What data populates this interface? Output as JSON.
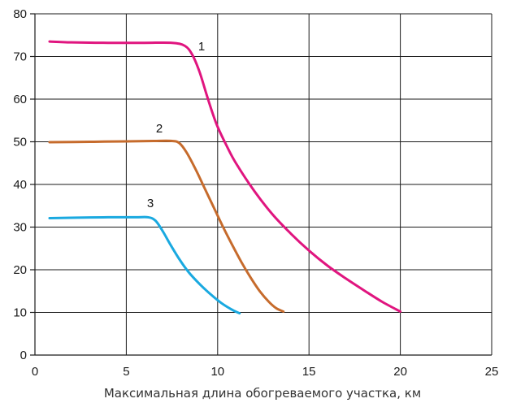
{
  "chart_data": {
    "type": "line",
    "title": "",
    "xlabel": "Максимальная длина обогреваемого участка, км",
    "ylabel": "",
    "xlim": [
      0,
      25
    ],
    "ylim": [
      0,
      80
    ],
    "xticks": [
      0,
      5,
      10,
      15,
      20,
      25
    ],
    "yticks": [
      0,
      10,
      20,
      30,
      40,
      50,
      60,
      70,
      80
    ],
    "grid": true,
    "legend": "none",
    "series": [
      {
        "label": "1",
        "color": "#e0157f",
        "x": [
          0.8,
          2,
          4,
          6,
          7.5,
          8.2,
          8.6,
          9.0,
          9.4,
          9.7,
          10.0,
          10.5,
          11,
          12,
          13,
          14,
          15,
          16,
          17,
          18,
          19,
          20
        ],
        "y": [
          73.5,
          73.3,
          73.2,
          73.2,
          73.2,
          72.5,
          70.5,
          66.5,
          61,
          57,
          53.5,
          49,
          45,
          38.5,
          33,
          28.5,
          24.5,
          21,
          18,
          15.2,
          12.5,
          10.2
        ]
      },
      {
        "label": "2",
        "color": "#c66b2c",
        "x": [
          0.8,
          3,
          5,
          6.5,
          7.5,
          7.9,
          8.3,
          8.8,
          9.3,
          9.8,
          10.3,
          10.8,
          11.3,
          11.8,
          12.3,
          12.8,
          13.2,
          13.6
        ],
        "y": [
          49.9,
          50,
          50.1,
          50.2,
          50.2,
          49.7,
          47.5,
          43.5,
          39,
          34.5,
          30,
          25.8,
          21.8,
          18.2,
          15,
          12.5,
          11,
          10.2
        ]
      },
      {
        "label": "3",
        "color": "#1aa9e0",
        "x": [
          0.8,
          2,
          4,
          5.5,
          6.2,
          6.6,
          7.0,
          7.4,
          7.9,
          8.4,
          9.0,
          9.6,
          10.2,
          10.8,
          11.2
        ],
        "y": [
          32.1,
          32.2,
          32.3,
          32.3,
          32.3,
          31.5,
          29,
          26,
          22.5,
          19.5,
          16.7,
          14.3,
          12.2,
          10.6,
          9.8
        ]
      }
    ]
  },
  "colors": {
    "grid": "#1a1a1a",
    "text": "#1a1a1a"
  }
}
